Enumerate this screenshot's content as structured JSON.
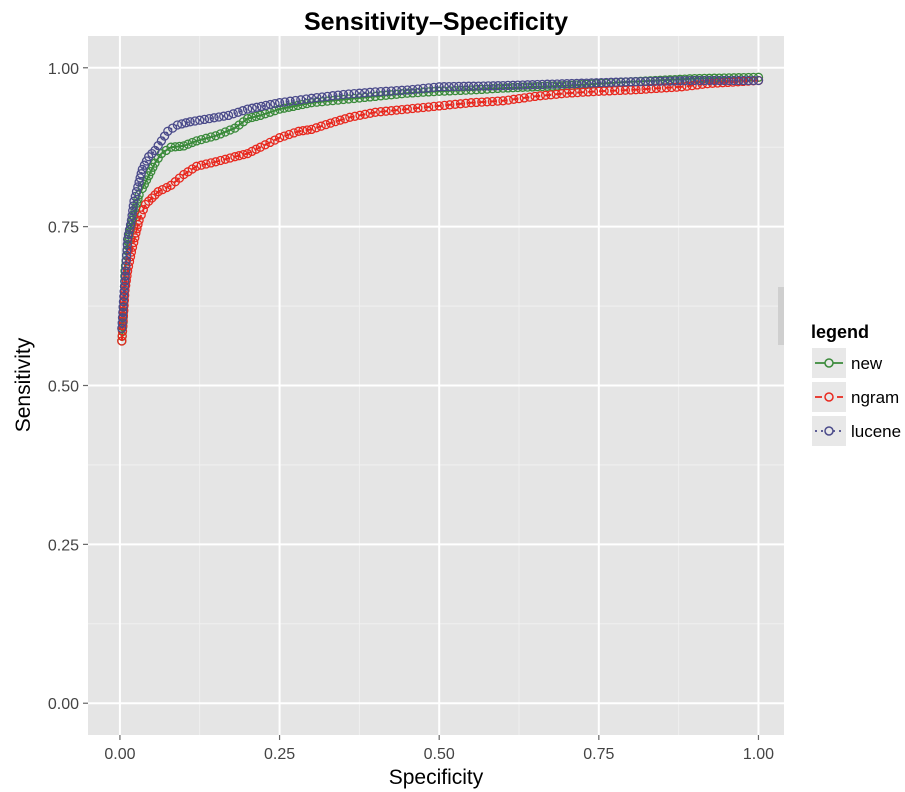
{
  "chart_data": {
    "type": "line",
    "title": "Sensitivity–Specificity",
    "xlabel": "Specificity",
    "ylabel": "Sensitivity",
    "xlim": [
      -0.05,
      1.04
    ],
    "ylim": [
      -0.05,
      1.05
    ],
    "x_ticks": [
      0.0,
      0.25,
      0.5,
      0.75,
      1.0
    ],
    "x_tick_labels": [
      "0.00",
      "0.25",
      "0.50",
      "0.75",
      "1.00"
    ],
    "y_ticks": [
      0.0,
      0.25,
      0.5,
      0.75,
      1.0
    ],
    "y_tick_labels": [
      "0.00",
      "0.25",
      "0.50",
      "0.75",
      "1.00"
    ],
    "grid": true,
    "legend": {
      "title": "legend",
      "placement": "right"
    },
    "series": [
      {
        "name": "new",
        "color": "#3a8a3a",
        "dash": "solid",
        "marker": "open-circle",
        "points": [
          [
            0.003,
            0.57
          ],
          [
            0.005,
            0.6
          ],
          [
            0.008,
            0.68
          ],
          [
            0.012,
            0.72
          ],
          [
            0.015,
            0.74
          ],
          [
            0.02,
            0.76
          ],
          [
            0.025,
            0.78
          ],
          [
            0.03,
            0.8
          ],
          [
            0.035,
            0.81
          ],
          [
            0.045,
            0.83
          ],
          [
            0.055,
            0.85
          ],
          [
            0.065,
            0.865
          ],
          [
            0.08,
            0.875
          ],
          [
            0.1,
            0.877
          ],
          [
            0.12,
            0.885
          ],
          [
            0.15,
            0.893
          ],
          [
            0.18,
            0.905
          ],
          [
            0.2,
            0.92
          ],
          [
            0.22,
            0.925
          ],
          [
            0.25,
            0.935
          ],
          [
            0.3,
            0.945
          ],
          [
            0.35,
            0.95
          ],
          [
            0.4,
            0.955
          ],
          [
            0.45,
            0.96
          ],
          [
            0.5,
            0.963
          ],
          [
            0.55,
            0.965
          ],
          [
            0.6,
            0.968
          ],
          [
            0.7,
            0.972
          ],
          [
            0.8,
            0.978
          ],
          [
            0.9,
            0.983
          ],
          [
            1.0,
            0.985
          ]
        ]
      },
      {
        "name": "ngram",
        "color": "#e8281e",
        "dash": "dashed",
        "marker": "open-circle",
        "points": [
          [
            0.003,
            0.57
          ],
          [
            0.008,
            0.65
          ],
          [
            0.012,
            0.68
          ],
          [
            0.018,
            0.71
          ],
          [
            0.025,
            0.74
          ],
          [
            0.03,
            0.76
          ],
          [
            0.04,
            0.785
          ],
          [
            0.05,
            0.795
          ],
          [
            0.06,
            0.805
          ],
          [
            0.08,
            0.815
          ],
          [
            0.1,
            0.832
          ],
          [
            0.12,
            0.845
          ],
          [
            0.15,
            0.852
          ],
          [
            0.18,
            0.86
          ],
          [
            0.2,
            0.865
          ],
          [
            0.22,
            0.875
          ],
          [
            0.25,
            0.89
          ],
          [
            0.28,
            0.9
          ],
          [
            0.3,
            0.903
          ],
          [
            0.33,
            0.913
          ],
          [
            0.36,
            0.922
          ],
          [
            0.4,
            0.93
          ],
          [
            0.45,
            0.935
          ],
          [
            0.5,
            0.94
          ],
          [
            0.55,
            0.945
          ],
          [
            0.6,
            0.948
          ],
          [
            0.65,
            0.955
          ],
          [
            0.7,
            0.96
          ],
          [
            0.75,
            0.963
          ],
          [
            0.8,
            0.965
          ],
          [
            0.88,
            0.97
          ],
          [
            0.92,
            0.975
          ],
          [
            1.0,
            0.98
          ]
        ]
      },
      {
        "name": "lucene",
        "color": "#4a4a8a",
        "dash": "dotted",
        "marker": "open-circle",
        "points": [
          [
            0.003,
            0.59
          ],
          [
            0.006,
            0.64
          ],
          [
            0.009,
            0.68
          ],
          [
            0.012,
            0.73
          ],
          [
            0.018,
            0.76
          ],
          [
            0.022,
            0.79
          ],
          [
            0.03,
            0.82
          ],
          [
            0.035,
            0.84
          ],
          [
            0.045,
            0.86
          ],
          [
            0.055,
            0.87
          ],
          [
            0.065,
            0.885
          ],
          [
            0.075,
            0.9
          ],
          [
            0.09,
            0.91
          ],
          [
            0.11,
            0.915
          ],
          [
            0.14,
            0.92
          ],
          [
            0.17,
            0.925
          ],
          [
            0.2,
            0.935
          ],
          [
            0.25,
            0.945
          ],
          [
            0.3,
            0.952
          ],
          [
            0.35,
            0.958
          ],
          [
            0.4,
            0.962
          ],
          [
            0.45,
            0.965
          ],
          [
            0.5,
            0.97
          ],
          [
            0.6,
            0.972
          ],
          [
            0.7,
            0.975
          ],
          [
            0.8,
            0.978
          ],
          [
            0.9,
            0.98
          ],
          [
            1.0,
            0.98
          ]
        ]
      }
    ]
  }
}
